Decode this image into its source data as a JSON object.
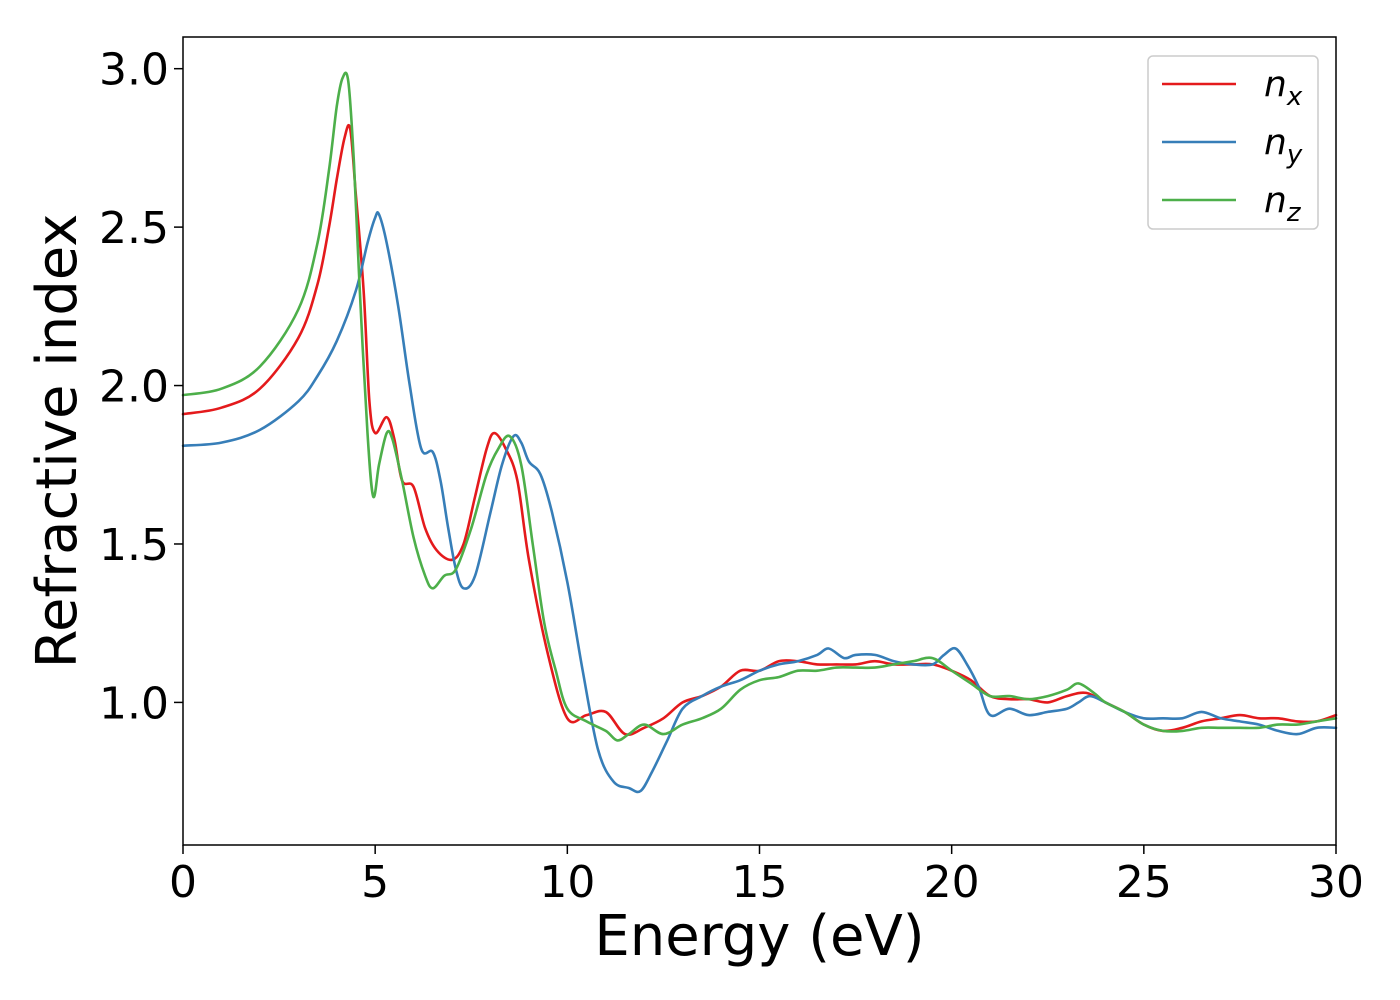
{
  "chart_data": {
    "type": "line",
    "xlabel": "Energy (eV)",
    "ylabel": "Refractive index",
    "xlim": [
      0,
      30
    ],
    "ylim": [
      0.55,
      3.1
    ],
    "xticks": [
      0,
      5,
      10,
      15,
      20,
      25,
      30
    ],
    "yticks": [
      1.0,
      1.5,
      2.0,
      2.5,
      3.0
    ],
    "xtick_labels": [
      "0",
      "5",
      "10",
      "15",
      "20",
      "25",
      "30"
    ],
    "ytick_labels": [
      "1.0",
      "1.5",
      "2.0",
      "2.5",
      "3.0"
    ],
    "grid": false,
    "legend_position": "top-right",
    "series": [
      {
        "name": "n",
        "subscript": "x",
        "color": "#e41a1c",
        "x": [
          0,
          1,
          2,
          3,
          3.5,
          3.8,
          4.0,
          4.2,
          4.35,
          4.5,
          4.7,
          4.85,
          5.0,
          5.3,
          5.5,
          5.7,
          6.0,
          6.3,
          6.6,
          7.0,
          7.3,
          7.6,
          7.9,
          8.1,
          8.4,
          8.7,
          9.0,
          9.5,
          10.0,
          10.5,
          11.0,
          11.5,
          12.0,
          12.5,
          13.0,
          13.5,
          14.0,
          14.5,
          15.0,
          15.5,
          16.0,
          16.5,
          17.0,
          17.5,
          18.0,
          18.5,
          19.0,
          19.5,
          20.0,
          20.5,
          21.0,
          21.5,
          22.0,
          22.5,
          23.0,
          23.5,
          24.0,
          24.5,
          25.0,
          25.5,
          26.0,
          26.5,
          27.0,
          27.5,
          28.0,
          28.5,
          29.0,
          29.5,
          30.0
        ],
        "y": [
          1.91,
          1.93,
          1.99,
          2.15,
          2.32,
          2.5,
          2.65,
          2.78,
          2.81,
          2.6,
          2.3,
          1.95,
          1.85,
          1.9,
          1.83,
          1.7,
          1.68,
          1.55,
          1.48,
          1.45,
          1.5,
          1.65,
          1.8,
          1.85,
          1.8,
          1.7,
          1.45,
          1.15,
          0.95,
          0.96,
          0.97,
          0.9,
          0.92,
          0.95,
          1.0,
          1.02,
          1.05,
          1.1,
          1.1,
          1.13,
          1.13,
          1.12,
          1.12,
          1.12,
          1.13,
          1.12,
          1.12,
          1.12,
          1.1,
          1.07,
          1.02,
          1.01,
          1.01,
          1.0,
          1.02,
          1.03,
          1.0,
          0.97,
          0.93,
          0.91,
          0.92,
          0.94,
          0.95,
          0.96,
          0.95,
          0.95,
          0.94,
          0.94,
          0.96
        ]
      },
      {
        "name": "n",
        "subscript": "y",
        "color": "#377eb8",
        "x": [
          0,
          1,
          2,
          3,
          3.5,
          4.0,
          4.5,
          4.8,
          5.0,
          5.1,
          5.3,
          5.6,
          5.9,
          6.2,
          6.5,
          6.7,
          6.9,
          7.1,
          7.3,
          7.6,
          8.0,
          8.3,
          8.6,
          8.8,
          9.0,
          9.3,
          9.6,
          10.0,
          10.4,
          10.8,
          11.2,
          11.6,
          11.9,
          12.2,
          12.6,
          13.0,
          13.5,
          14.0,
          14.5,
          15.0,
          15.5,
          16.0,
          16.5,
          16.8,
          17.2,
          17.5,
          18.0,
          18.5,
          19.0,
          19.5,
          19.8,
          20.1,
          20.4,
          20.7,
          21.0,
          21.5,
          22.0,
          22.5,
          23.0,
          23.3,
          23.6,
          24.0,
          24.5,
          25.0,
          25.5,
          26.0,
          26.5,
          27.0,
          27.5,
          28.0,
          28.5,
          29.0,
          29.5,
          30.0
        ],
        "y": [
          1.81,
          1.82,
          1.86,
          1.95,
          2.03,
          2.14,
          2.3,
          2.45,
          2.53,
          2.54,
          2.45,
          2.25,
          2.0,
          1.8,
          1.79,
          1.7,
          1.55,
          1.42,
          1.36,
          1.4,
          1.6,
          1.75,
          1.84,
          1.82,
          1.76,
          1.72,
          1.6,
          1.38,
          1.1,
          0.85,
          0.75,
          0.73,
          0.72,
          0.78,
          0.88,
          0.98,
          1.02,
          1.05,
          1.07,
          1.1,
          1.12,
          1.13,
          1.15,
          1.17,
          1.14,
          1.15,
          1.15,
          1.13,
          1.12,
          1.12,
          1.15,
          1.17,
          1.12,
          1.05,
          0.96,
          0.98,
          0.96,
          0.97,
          0.98,
          1.0,
          1.02,
          1.0,
          0.97,
          0.95,
          0.95,
          0.95,
          0.97,
          0.95,
          0.94,
          0.93,
          0.91,
          0.9,
          0.92,
          0.92
        ]
      },
      {
        "name": "n",
        "subscript": "z",
        "color": "#4daf4a",
        "x": [
          0,
          1,
          2,
          3,
          3.5,
          3.8,
          4.0,
          4.15,
          4.3,
          4.45,
          4.6,
          4.8,
          4.95,
          5.1,
          5.3,
          5.45,
          5.7,
          6.0,
          6.3,
          6.5,
          6.8,
          7.1,
          7.5,
          7.9,
          8.2,
          8.5,
          8.8,
          9.1,
          9.4,
          9.7,
          10.0,
          10.5,
          11.0,
          11.3,
          11.6,
          12.0,
          12.5,
          13.0,
          13.5,
          14.0,
          14.5,
          15.0,
          15.5,
          16.0,
          16.5,
          17.0,
          17.5,
          18.0,
          18.5,
          19.0,
          19.5,
          20.0,
          20.5,
          21.0,
          21.5,
          22.0,
          22.5,
          23.0,
          23.3,
          23.7,
          24.0,
          24.5,
          25.0,
          25.5,
          26.0,
          26.5,
          27.0,
          27.5,
          28.0,
          28.5,
          29.0,
          29.5,
          30.0
        ],
        "y": [
          1.97,
          1.99,
          2.06,
          2.24,
          2.45,
          2.68,
          2.88,
          2.97,
          2.96,
          2.7,
          2.3,
          1.85,
          1.65,
          1.75,
          1.85,
          1.83,
          1.7,
          1.52,
          1.4,
          1.36,
          1.4,
          1.42,
          1.55,
          1.72,
          1.8,
          1.84,
          1.75,
          1.5,
          1.25,
          1.1,
          0.98,
          0.94,
          0.91,
          0.88,
          0.9,
          0.93,
          0.9,
          0.93,
          0.95,
          0.98,
          1.04,
          1.07,
          1.08,
          1.1,
          1.1,
          1.11,
          1.11,
          1.11,
          1.12,
          1.13,
          1.14,
          1.1,
          1.06,
          1.02,
          1.02,
          1.01,
          1.02,
          1.04,
          1.06,
          1.03,
          1.0,
          0.97,
          0.93,
          0.91,
          0.91,
          0.92,
          0.92,
          0.92,
          0.92,
          0.93,
          0.93,
          0.94,
          0.95
        ]
      }
    ]
  }
}
